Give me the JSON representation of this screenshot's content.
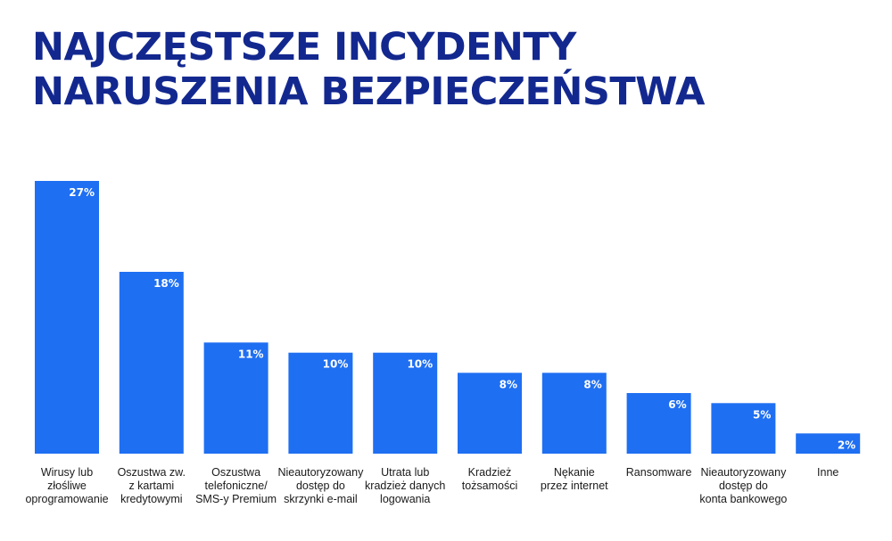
{
  "title": {
    "line1": "NAJCZĘSTSZE INCYDENTY",
    "line2": "NARUSZENIA BEZPIECZEŃSTWA"
  },
  "colors": {
    "title": "#13288f",
    "bar": "#1f6ff2",
    "bar_label": "#ffffff",
    "category_text": "#1a1a1a"
  },
  "chart_data": {
    "type": "bar",
    "title": "NAJCZĘSTSZE INCYDENTY NARUSZENIA BEZPIECZEŃSTWA",
    "xlabel": "",
    "ylabel": "",
    "ylim": [
      0,
      27
    ],
    "grid": false,
    "unit": "%",
    "categories": [
      [
        "Wirusy lub",
        "złośliwe",
        "oprogramowanie"
      ],
      [
        "Oszustwa zw.",
        "z kartami",
        "kredytowymi"
      ],
      [
        "Oszustwa",
        "telefoniczne/",
        "SMS-y Premium"
      ],
      [
        "Nieautoryzowany",
        "dostęp do",
        "skrzynki e-mail"
      ],
      [
        "Utrata lub",
        "kradzież danych",
        "logowania"
      ],
      [
        "Kradzież",
        "tożsamości"
      ],
      [
        "Nękanie",
        "przez internet"
      ],
      [
        "Ransomware"
      ],
      [
        "Nieautoryzowany",
        "dostęp do",
        "konta bankowego"
      ],
      [
        "Inne"
      ]
    ],
    "values": [
      27,
      18,
      11,
      10,
      10,
      8,
      8,
      6,
      5,
      2
    ],
    "value_labels": [
      "27%",
      "18%",
      "11%",
      "10%",
      "10%",
      "8%",
      "8%",
      "6%",
      "5%",
      "2%"
    ]
  }
}
